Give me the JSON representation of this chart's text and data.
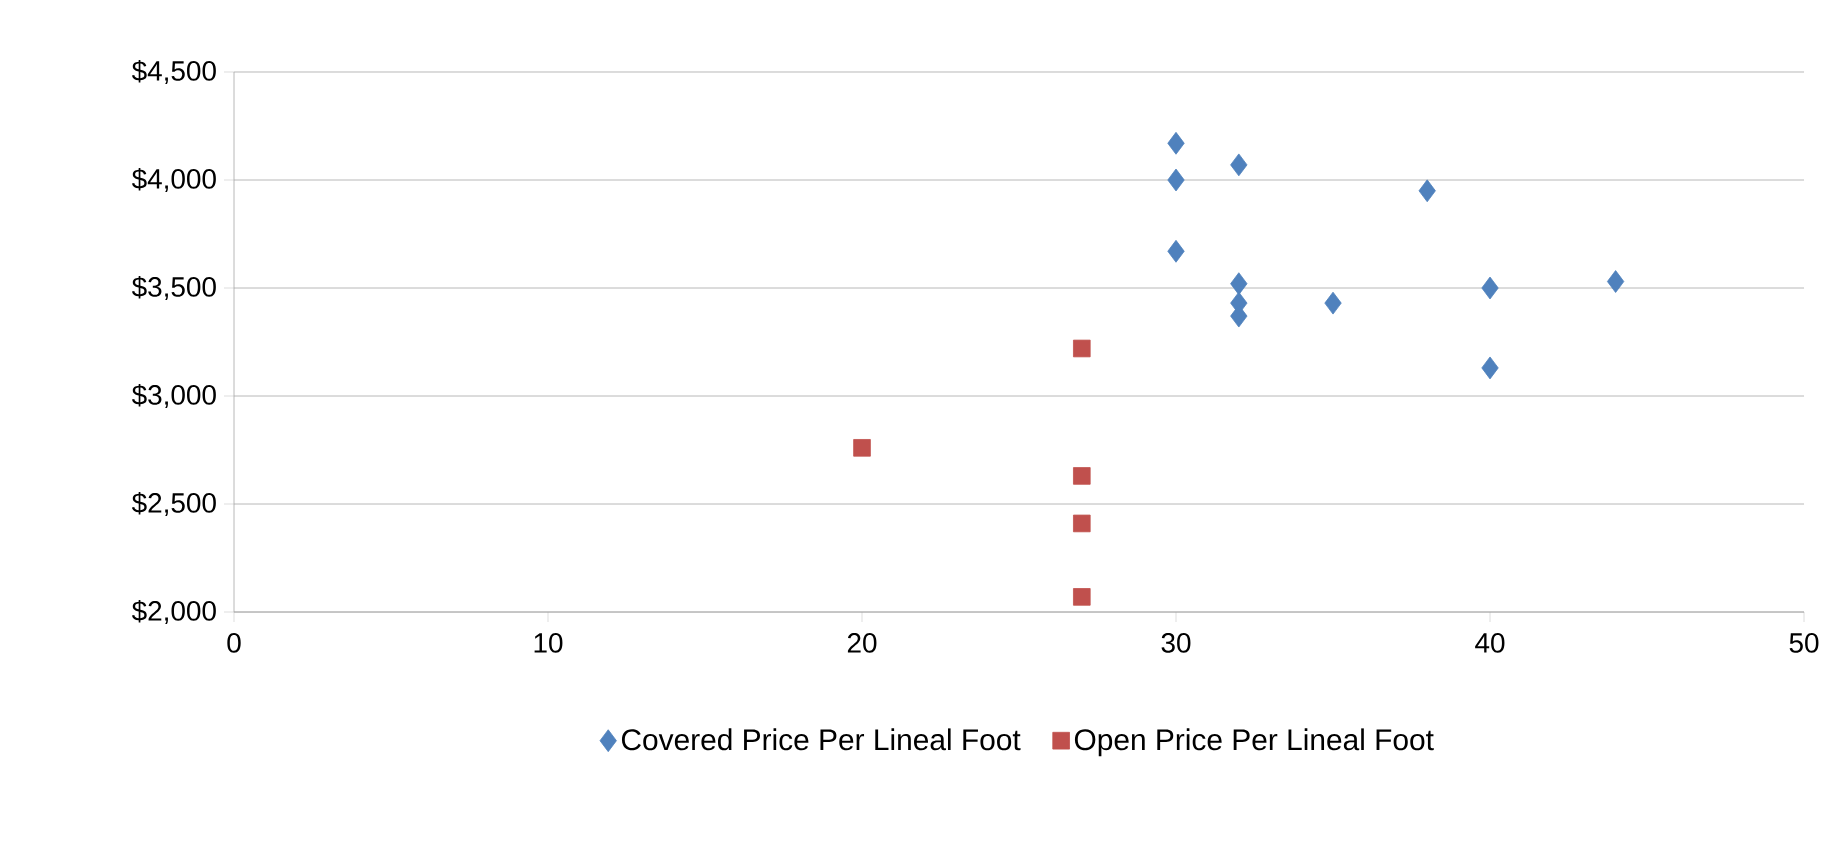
{
  "chart_data": {
    "type": "scatter",
    "series": [
      {
        "name": "Covered Price Per Lineal Foot",
        "color": "#4f81bd",
        "marker": "diamond",
        "x": [
          30,
          30,
          32,
          30,
          32,
          32,
          32,
          35,
          38,
          40,
          40,
          44
        ],
        "values": [
          4170,
          4000,
          4070,
          3670,
          3520,
          3430,
          3370,
          3430,
          3950,
          3500,
          3130,
          3530
        ]
      },
      {
        "name": "Open Price Per Lineal Foot",
        "color": "#c0504d",
        "marker": "square",
        "x": [
          27,
          20,
          27,
          27,
          27
        ],
        "values": [
          3220,
          2760,
          2630,
          2410,
          2070
        ]
      }
    ],
    "xlim": [
      0,
      50
    ],
    "xticks": [
      0,
      10,
      20,
      30,
      40,
      50
    ],
    "ylim": [
      2000,
      4500
    ],
    "yticks": [
      {
        "value": 2000,
        "label": "$2,000"
      },
      {
        "value": 2500,
        "label": "$2,500"
      },
      {
        "value": 3000,
        "label": "$3,000"
      },
      {
        "value": 3500,
        "label": "$3,500"
      },
      {
        "value": 4000,
        "label": "$4,000"
      },
      {
        "value": 4500,
        "label": "$4,500"
      }
    ],
    "grid": "y",
    "legend": "bottom"
  }
}
